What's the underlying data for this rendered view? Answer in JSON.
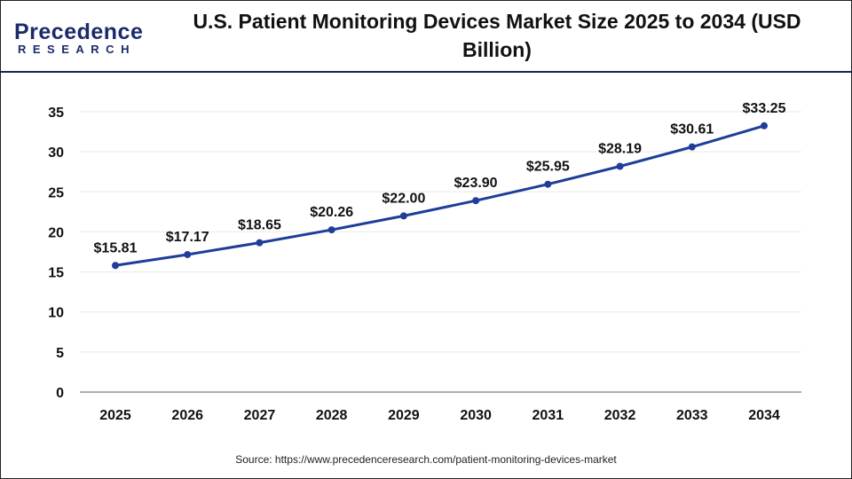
{
  "logo": {
    "main": "Precedence",
    "sub": "RESEARCH"
  },
  "title": "U.S. Patient Monitoring Devices Market Size 2025 to 2034 (USD Billion)",
  "source": "Source: https://www.precedenceresearch.com/patient-monitoring-devices-market",
  "colors": {
    "line": "#1f3d99",
    "header_rule": "#1a2350",
    "grid": "#e8e8e8",
    "axis": "#b0b0b0"
  },
  "chart_data": {
    "type": "line",
    "title": "U.S. Patient Monitoring Devices Market Size 2025 to 2034 (USD Billion)",
    "xlabel": "",
    "ylabel": "",
    "categories": [
      "2025",
      "2026",
      "2027",
      "2028",
      "2029",
      "2030",
      "2031",
      "2032",
      "2033",
      "2034"
    ],
    "values": [
      15.81,
      17.17,
      18.65,
      20.26,
      22.0,
      23.9,
      25.95,
      28.19,
      30.61,
      33.25
    ],
    "data_labels": [
      "$15.81",
      "$17.17",
      "$18.65",
      "$20.26",
      "$22.00",
      "$23.90",
      "$25.95",
      "$28.19",
      "$30.61",
      "$33.25"
    ],
    "yticks": [
      0,
      5,
      10,
      15,
      20,
      25,
      30,
      35
    ],
    "ylim": [
      0,
      35
    ],
    "grid": true,
    "legend": "none"
  }
}
